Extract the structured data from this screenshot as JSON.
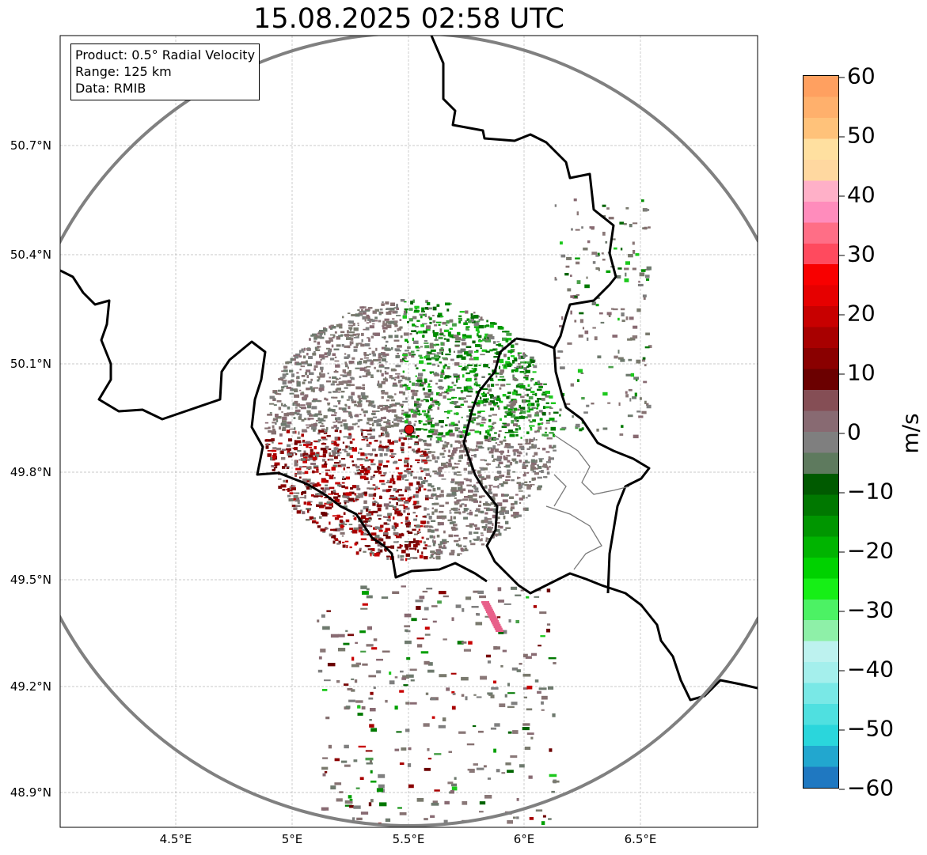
{
  "title": "15.08.2025 02:58 UTC",
  "info": {
    "product": "Product: 0.5° Radial Velocity",
    "range": "Range: 125 km",
    "source": "Data: RMIB"
  },
  "latitude_ticks": [
    "50.7°N",
    "50.4°N",
    "50.1°N",
    "49.8°N",
    "49.5°N",
    "49.2°N",
    "48.9°N"
  ],
  "longitude_ticks": [
    "4.5°E",
    "5°E",
    "5.5°E",
    "6°E",
    "6.5°E"
  ],
  "colorbar": {
    "label": "m/s",
    "ticks": [
      "60",
      "50",
      "40",
      "30",
      "20",
      "10",
      "0",
      "−10",
      "−20",
      "−30",
      "−40",
      "−50",
      "−60"
    ],
    "range": [
      -60,
      60
    ],
    "colors": [
      "#1f78c1",
      "#22a7cf",
      "#2ad6dc",
      "#4fe0e0",
      "#79e8e6",
      "#a4efec",
      "#bdf2ef",
      "#8ef0a8",
      "#4cf264",
      "#16ef16",
      "#00d200",
      "#00b400",
      "#009600",
      "#007800",
      "#005a00",
      "#5e7a5e",
      "#7f7f7f",
      "#886a72",
      "#854e55",
      "#6b0000",
      "#8a0000",
      "#a80000",
      "#c80000",
      "#e60000",
      "#f80000",
      "#ff4a5e",
      "#ff6e86",
      "#ff8cbc",
      "#ffb0c8",
      "#ffd8a0",
      "#ffe0a0",
      "#ffc27a",
      "#ffb06c",
      "#ffa060"
    ]
  },
  "map": {
    "radar_site": {
      "lon": 5.5,
      "lat": 49.91
    },
    "range_ring_km": 125,
    "extent": {
      "lon": [
        4.0,
        7.0
      ],
      "lat": [
        48.8,
        51.0
      ]
    },
    "colors": {
      "ring": "#808080",
      "border": "#000000",
      "inner_border": "#7a7a7a",
      "grid": "#b0b0b0",
      "site": "#e01010"
    }
  }
}
